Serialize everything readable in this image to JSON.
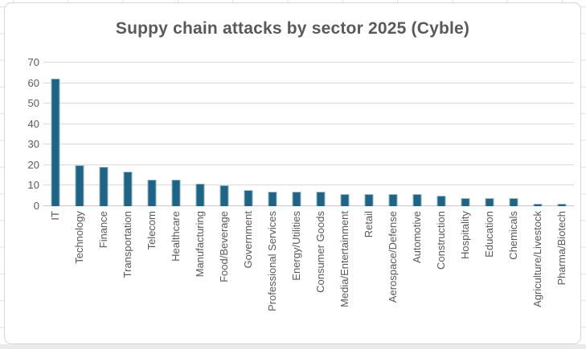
{
  "chart_data": {
    "type": "bar",
    "title": "Suppy chain attacks by sector 2025 (Cyble)",
    "categories": [
      "IT",
      "Technology",
      "Finance",
      "Transportation",
      "Telecom",
      "Healthcare",
      "Manufacturing",
      "Food/Beverage",
      "Government",
      "Professional Services",
      "Energy/Utilities",
      "Consumer Goods",
      "Media/Entertainment",
      "Retail",
      "Aerospace/Defense",
      "Automotive",
      "Construction",
      "Hospitality",
      "Education",
      "Chemicals",
      "Agriculture/Livestock",
      "Pharma/Biotech"
    ],
    "values": [
      62,
      20,
      19,
      17,
      13,
      13,
      11,
      10,
      8,
      7,
      7,
      7,
      6,
      6,
      6,
      6,
      5,
      4,
      4,
      4,
      1,
      1
    ],
    "xlabel": "",
    "ylabel": "",
    "ylim": [
      0,
      70
    ],
    "yticks": [
      0,
      10,
      20,
      30,
      40,
      50,
      60,
      70
    ],
    "grid": true,
    "legend": false,
    "x_label_rotation_deg": -90,
    "colors": {
      "bar_fill": "#1f6484",
      "bar_edge": "#8fb3c5",
      "gridline": "#d9d9d9",
      "axis_line": "#c8c8c8",
      "text": "#595959",
      "chart_border": "#d6d6d6",
      "sheet_gridline": "#e3e3e3"
    }
  }
}
